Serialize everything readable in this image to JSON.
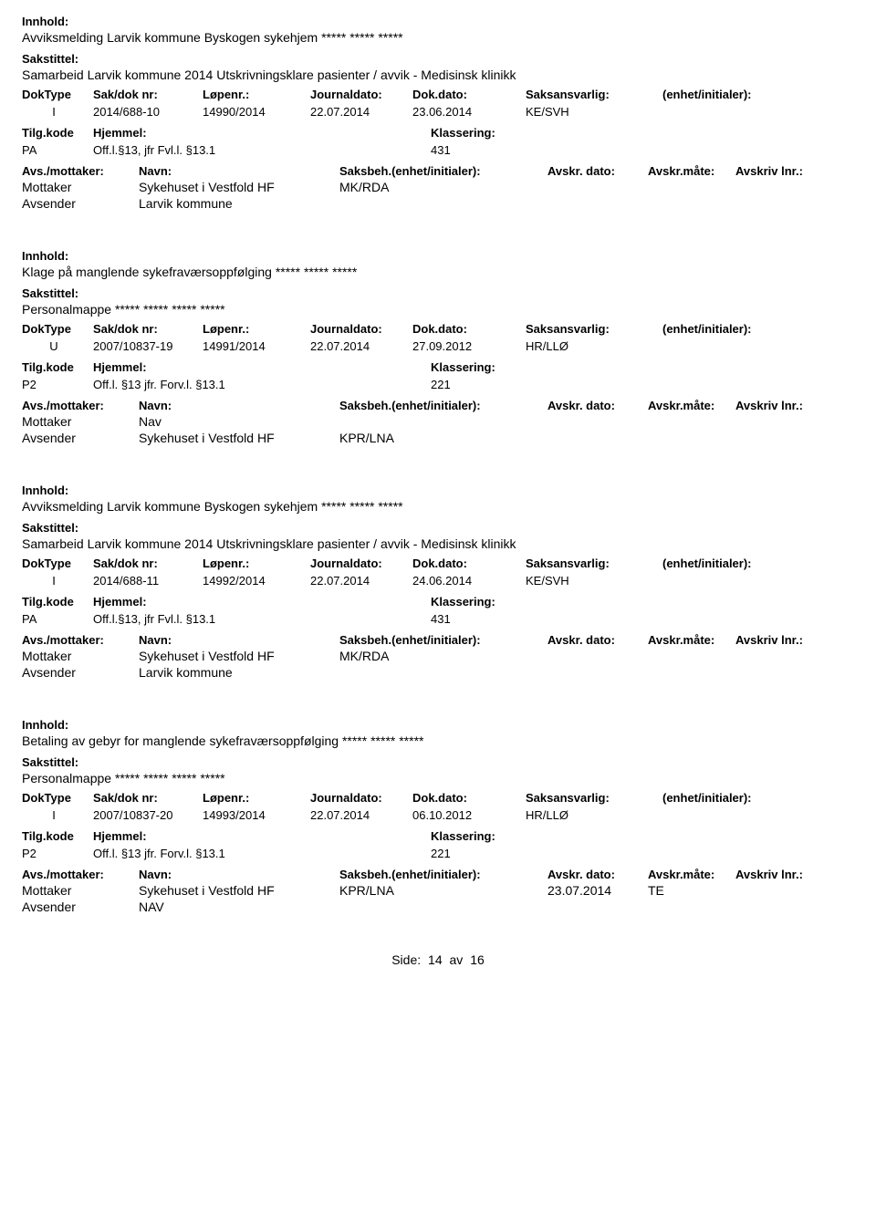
{
  "labels": {
    "innhold": "Innhold:",
    "sakstittel": "Sakstittel:",
    "doktype": "DokType",
    "saknr": "Sak/dok nr:",
    "lopenr": "Løpenr.:",
    "journaldato": "Journaldato:",
    "dokdato": "Dok.dato:",
    "saksansvarlig": "Saksansvarlig:",
    "enhet": "(enhet/initialer):",
    "tilgkode": "Tilg.kode",
    "hjemmel": "Hjemmel:",
    "klassering": "Klassering:",
    "avsmottaker": "Avs./mottaker:",
    "navn": "Navn:",
    "saksbeh": "Saksbeh.(enhet/initialer):",
    "avskrdato": "Avskr. dato:",
    "avskrmate": "Avskr.måte:",
    "avskrivlnr": "Avskriv lnr.:",
    "mottaker": "Mottaker",
    "avsender": "Avsender"
  },
  "footer": {
    "side_label": "Side:",
    "page": "14",
    "sep": "av",
    "total": "16"
  },
  "records": [
    {
      "innhold": "Avviksmelding Larvik kommune Byskogen sykehjem ***** ***** *****",
      "sakstittel": "Samarbeid Larvik kommune 2014 Utskrivningsklare pasienter / avvik - Medisinsk klinikk",
      "doktype": "I",
      "saknr": "2014/688-10",
      "lopenr": "14990/2014",
      "journaldato": "22.07.2014",
      "dokdato": "23.06.2014",
      "saksansvarlig": "KE/SVH",
      "tilgkode": "PA",
      "hjemmel": "Off.l.§13, jfr Fvl.l. §13.1",
      "klassering": "431",
      "parties": [
        {
          "role": "Mottaker",
          "name": "Sykehuset i Vestfold HF",
          "beh": "MK/RDA",
          "avskrdato": "",
          "avskrmate": ""
        },
        {
          "role": "Avsender",
          "name": "Larvik kommune",
          "beh": "",
          "avskrdato": "",
          "avskrmate": ""
        }
      ]
    },
    {
      "innhold": "Klage på manglende sykefraværsoppfølging ***** ***** *****",
      "sakstittel": "Personalmappe ***** ***** ***** *****",
      "doktype": "U",
      "saknr": "2007/10837-19",
      "lopenr": "14991/2014",
      "journaldato": "22.07.2014",
      "dokdato": "27.09.2012",
      "saksansvarlig": "HR/LLØ",
      "tilgkode": "P2",
      "hjemmel": "Off.l. §13  jfr. Forv.l. §13.1",
      "klassering": "221",
      "parties": [
        {
          "role": "Mottaker",
          "name": "Nav",
          "beh": "",
          "avskrdato": "",
          "avskrmate": ""
        },
        {
          "role": "Avsender",
          "name": "Sykehuset i Vestfold HF",
          "beh": "KPR/LNA",
          "avskrdato": "",
          "avskrmate": ""
        }
      ]
    },
    {
      "innhold": "Avviksmelding Larvik kommune Byskogen sykehjem ***** ***** *****",
      "sakstittel": "Samarbeid Larvik kommune 2014 Utskrivningsklare pasienter / avvik - Medisinsk klinikk",
      "doktype": "I",
      "saknr": "2014/688-11",
      "lopenr": "14992/2014",
      "journaldato": "22.07.2014",
      "dokdato": "24.06.2014",
      "saksansvarlig": "KE/SVH",
      "tilgkode": "PA",
      "hjemmel": "Off.l.§13, jfr Fvl.l. §13.1",
      "klassering": "431",
      "parties": [
        {
          "role": "Mottaker",
          "name": "Sykehuset i Vestfold HF",
          "beh": "MK/RDA",
          "avskrdato": "",
          "avskrmate": ""
        },
        {
          "role": "Avsender",
          "name": "Larvik kommune",
          "beh": "",
          "avskrdato": "",
          "avskrmate": ""
        }
      ]
    },
    {
      "innhold": "Betaling av gebyr for manglende sykefraværsoppfølging ***** ***** *****",
      "sakstittel": "Personalmappe ***** ***** ***** *****",
      "doktype": "I",
      "saknr": "2007/10837-20",
      "lopenr": "14993/2014",
      "journaldato": "22.07.2014",
      "dokdato": "06.10.2012",
      "saksansvarlig": "HR/LLØ",
      "tilgkode": "P2",
      "hjemmel": "Off.l. §13  jfr. Forv.l. §13.1",
      "klassering": "221",
      "parties": [
        {
          "role": "Mottaker",
          "name": "Sykehuset i Vestfold HF",
          "beh": "KPR/LNA",
          "avskrdato": "23.07.2014",
          "avskrmate": "TE"
        },
        {
          "role": "Avsender",
          "name": "NAV",
          "beh": "",
          "avskrdato": "",
          "avskrmate": ""
        }
      ]
    }
  ]
}
